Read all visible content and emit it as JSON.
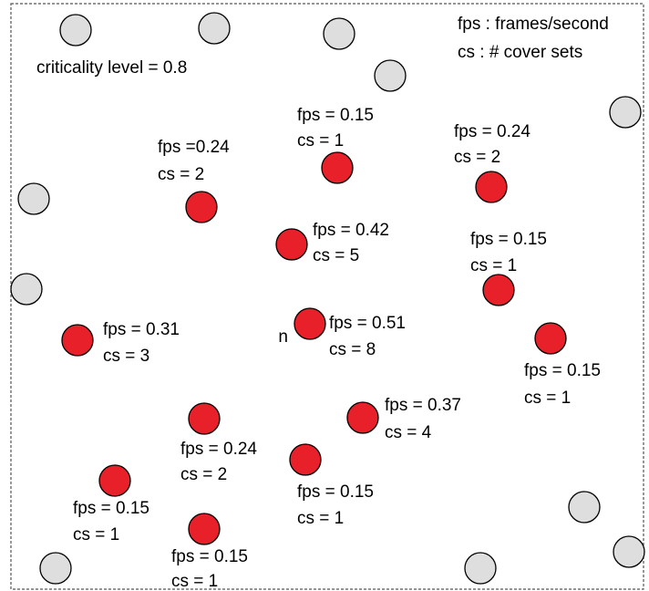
{
  "legend": {
    "fps": "fps : frames/second",
    "cs": "cs : # cover sets"
  },
  "criticality": "criticality level = 0.8",
  "node_label": "n",
  "colors": {
    "active": "#e8202a",
    "inactive": "#dedede",
    "stroke": "#000000",
    "border": "#555555"
  },
  "active_nodes": [
    {
      "fps": "fps = 0.15",
      "cs": "cs = 1"
    },
    {
      "fps": "fps =0.24",
      "cs": "cs = 2"
    },
    {
      "fps": "fps = 0.24",
      "cs": "cs = 2"
    },
    {
      "fps": "fps = 0.42",
      "cs": "cs = 5"
    },
    {
      "fps": "fps = 0.15",
      "cs": "cs = 1"
    },
    {
      "fps": "fps = 0.51",
      "cs": "cs = 8"
    },
    {
      "fps": "fps = 0.31",
      "cs": "cs = 3"
    },
    {
      "fps": "fps = 0.15",
      "cs": "cs = 1"
    },
    {
      "fps": "fps = 0.37",
      "cs": "cs = 4"
    },
    {
      "fps": "fps = 0.24",
      "cs": "cs = 2"
    },
    {
      "fps": "fps = 0.15",
      "cs": "cs = 1"
    },
    {
      "fps": "fps = 0.15",
      "cs": "cs = 1"
    },
    {
      "fps": "fps = 0.15",
      "cs": "cs = 1"
    }
  ]
}
